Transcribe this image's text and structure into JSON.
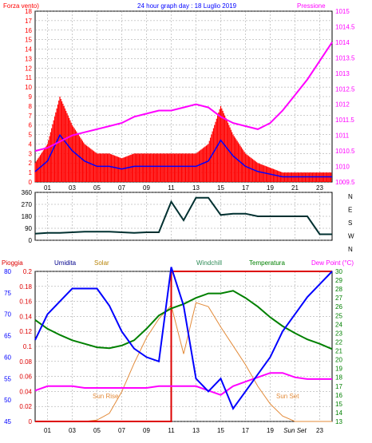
{
  "header": {
    "title": "24 hour graph day : 18 Luglio 2019",
    "left_label": "Forza vento)",
    "right_label": "Pressione"
  },
  "wind_panel": {
    "y_ticks": [
      "0",
      "1",
      "2",
      "3",
      "4",
      "5",
      "6",
      "7",
      "8",
      "9",
      "10",
      "11",
      "12",
      "13",
      "14",
      "15",
      "16",
      "17",
      "18"
    ],
    "pressure_ticks": [
      "1009.5",
      "1010",
      "1010.5",
      "1011",
      "1011.5",
      "1012",
      "1012.5",
      "1013",
      "1013.5",
      "1014",
      "1014.5",
      "1015"
    ]
  },
  "dir_panel": {
    "y_ticks": [
      "0",
      "90",
      "180",
      "270",
      "360"
    ],
    "compass": [
      "N",
      "W",
      "S",
      "E",
      "N"
    ]
  },
  "bottom_panel": {
    "labels": {
      "pioggia": "Pioggia",
      "umidita": "Umidita",
      "solar": "Solar",
      "windchill": "Windchill",
      "temperatura": "Temperatura",
      "dewpoint": "Dew Point (°C)"
    },
    "humidity_ticks": [
      "45",
      "50",
      "55",
      "60",
      "65",
      "70",
      "75",
      "80"
    ],
    "rain_ticks": [
      "0",
      "0.02",
      "0.04",
      "0.06",
      "0.08",
      "0.1",
      "0.12",
      "0.14",
      "0.16",
      "0.18",
      "0.2"
    ],
    "temp_ticks": [
      "13",
      "14",
      "15",
      "16",
      "17",
      "18",
      "19",
      "20",
      "21",
      "22",
      "23",
      "24",
      "25",
      "26",
      "27",
      "28",
      "29",
      "30"
    ],
    "sun_rise": "Sun Rise",
    "sun_set": "Sun Set"
  },
  "x_ticks_top": [
    "01",
    "03",
    "05",
    "07",
    "09",
    "11",
    "13",
    "15",
    "17",
    "19",
    "21",
    "23"
  ],
  "x_ticks_bottom": [
    "01",
    "03",
    "05",
    "07",
    "09",
    "11",
    "13",
    "15",
    "17",
    "19",
    "Sun Set",
    "23"
  ],
  "colors": {
    "wind": "#ff0000",
    "gust": "#0000ff",
    "pressure": "#ff00ff",
    "direction": "#003030",
    "humidity": "#0000ff",
    "temperature": "#008000",
    "dewpoint": "#ff00ff",
    "solar": "#e38b3a",
    "rain": "#dd0000"
  },
  "chart_data": [
    {
      "type": "line",
      "title": "24 hour graph day : 18 Luglio 2019",
      "x": [
        0,
        1,
        2,
        3,
        4,
        5,
        6,
        7,
        8,
        9,
        10,
        11,
        12,
        13,
        14,
        15,
        16,
        17,
        18,
        19,
        20,
        21,
        22,
        23,
        24
      ],
      "series": [
        {
          "name": "Forza vento)",
          "values": [
            2,
            4,
            9,
            6,
            4,
            3,
            3,
            2.5,
            3,
            3,
            3,
            3,
            3,
            3,
            4,
            8,
            5,
            3,
            2,
            1.5,
            1,
            1,
            1,
            1,
            1
          ]
        },
        {
          "name": "Pressione",
          "values": [
            1010.5,
            1010.6,
            1010.8,
            1011,
            1011.1,
            1011.2,
            1011.3,
            1011.4,
            1011.6,
            1011.7,
            1011.8,
            1011.8,
            1011.9,
            1012,
            1011.9,
            1011.6,
            1011.4,
            1011.3,
            1011.2,
            1011.4,
            1011.8,
            1012.3,
            1012.8,
            1013.4,
            1014
          ]
        }
      ],
      "ylim": [
        0,
        18
      ],
      "y2lim": [
        1009.5,
        1015
      ]
    },
    {
      "type": "line",
      "x": [
        0,
        1,
        2,
        3,
        4,
        5,
        6,
        7,
        8,
        9,
        10,
        11,
        12,
        13,
        14,
        15,
        16,
        17,
        18,
        19,
        20,
        21,
        22,
        23,
        24
      ],
      "series": [
        {
          "values": [
            50,
            55,
            55,
            60,
            65,
            65,
            65,
            60,
            55,
            60,
            60,
            290,
            150,
            320,
            320,
            190,
            200,
            200,
            180,
            180,
            180,
            180,
            180,
            45,
            45
          ]
        }
      ],
      "ylim": [
        0,
        360
      ]
    },
    {
      "type": "line",
      "x": [
        0,
        1,
        2,
        3,
        4,
        5,
        6,
        7,
        8,
        9,
        10,
        11,
        12,
        13,
        14,
        15,
        16,
        17,
        18,
        19,
        20,
        21,
        22,
        23,
        24
      ],
      "series": [
        {
          "name": "Umidita",
          "values": [
            64,
            70,
            73,
            76,
            76,
            76,
            72,
            66,
            62,
            60,
            59,
            81,
            72,
            55,
            52,
            55,
            48,
            52,
            56,
            60,
            66,
            70,
            74,
            77,
            80
          ]
        },
        {
          "name": "Temperatura",
          "values": [
            24.5,
            23.5,
            22.8,
            22.2,
            21.8,
            21.4,
            21.3,
            21.6,
            22.2,
            23.5,
            25,
            25.8,
            26.3,
            27,
            27.5,
            27.5,
            27.8,
            27,
            26,
            24.8,
            23.8,
            23,
            22.3,
            21.8,
            21.2
          ]
        },
        {
          "name": "Dew Point (°C)",
          "values": [
            16.5,
            17,
            17,
            17,
            16.8,
            16.8,
            16.8,
            16.8,
            16.8,
            16.8,
            17,
            17,
            17,
            17,
            16.5,
            16,
            17,
            17.5,
            18,
            18.5,
            18.5,
            18,
            17.8,
            17.8,
            17.8
          ]
        },
        {
          "name": "Solar",
          "values": [
            0,
            0,
            0,
            0,
            0,
            10,
            60,
            220,
            430,
            620,
            760,
            860,
            500,
            880,
            850,
            700,
            560,
            420,
            260,
            130,
            40,
            0,
            0,
            0,
            0
          ]
        },
        {
          "name": "Pioggia",
          "values": [
            0,
            0,
            0,
            0,
            0,
            0,
            0,
            0,
            0,
            0,
            0,
            0.2,
            0.2,
            0.2,
            0.2,
            0.2,
            0.2,
            0.2,
            0.2,
            0.2,
            0.2,
            0.2,
            0.2,
            0.2,
            0.2
          ]
        }
      ],
      "ylim": [
        45,
        80
      ],
      "y2lim": [
        13,
        30
      ]
    }
  ]
}
